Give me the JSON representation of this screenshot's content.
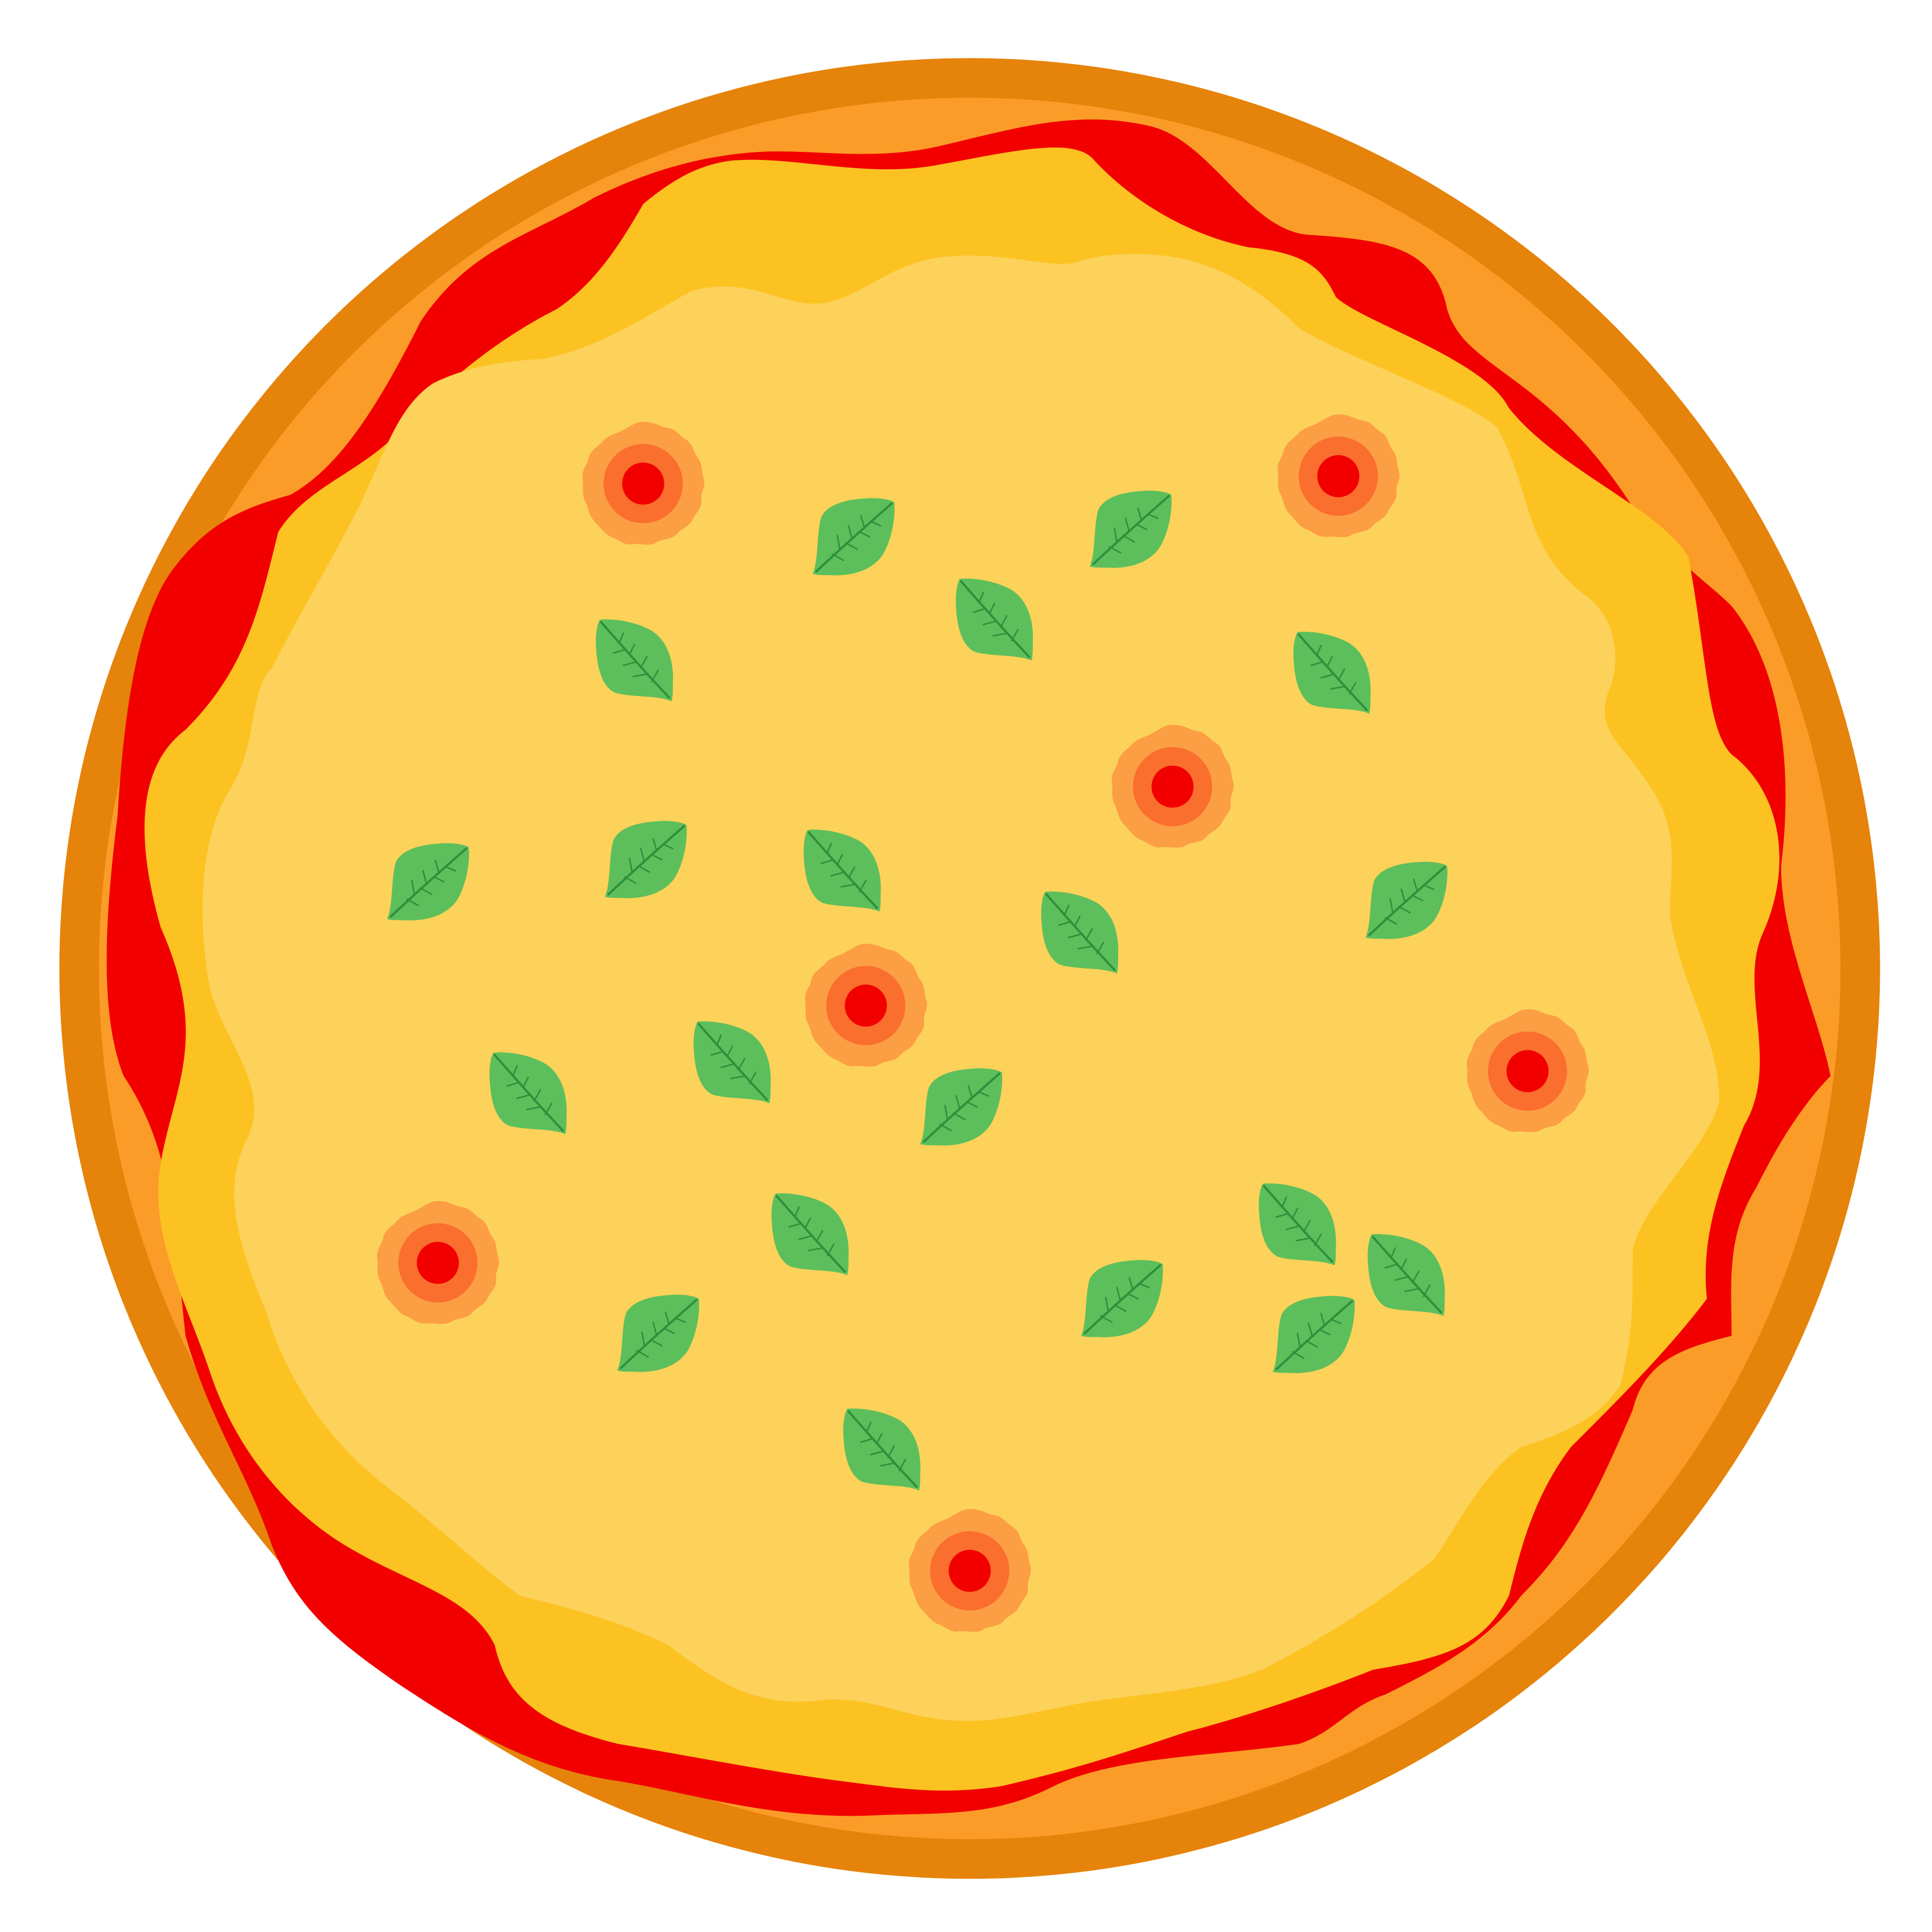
{
  "illustration": {
    "subject": "pizza",
    "colors": {
      "background": "#ffffff",
      "crust_outer": "#E5830A",
      "crust_inner": "#FC9C28",
      "sauce": "#F20000",
      "cheese_outer": "#FCC222",
      "cheese_inner": "#FDD25A",
      "tomato_outer": "#FC9E44",
      "tomato_middle": "#FA6E2E",
      "tomato_center": "#F20000",
      "basil_leaf": "#5DBF5B",
      "basil_vein": "#2E8F3C"
    },
    "toppings": {
      "tomato_slice_count": 8,
      "basil_leaf_count": 22
    }
  }
}
